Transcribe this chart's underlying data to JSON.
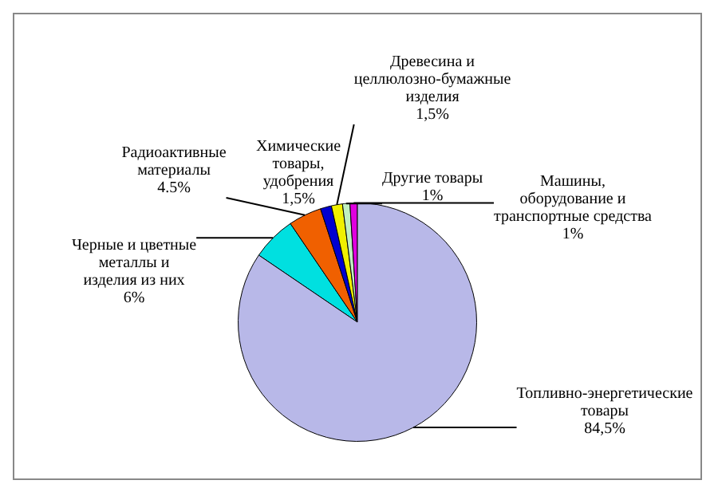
{
  "chart_data": {
    "type": "pie",
    "categories": [
      "Черные и цветные металлы и изделия из них",
      "Радиоактивные материалы",
      "Химические товары, удобрения",
      "Древесина и целлюлозно-бумажные изделия",
      "Другие товары",
      "Машины, оборудование и транспортные средства",
      "Топливно-энергетические товары"
    ],
    "values": [
      6,
      4.5,
      1.5,
      1.5,
      1,
      1,
      84.5
    ],
    "value_labels": [
      "6%",
      "4.5%",
      "1,5%",
      "1,5%",
      "1%",
      "1%",
      "84,5%"
    ],
    "colors": [
      "#00e0e0",
      "#f06000",
      "#0000d0",
      "#f0f000",
      "#c0f0c0",
      "#e000e0",
      "#b8b8e8"
    ],
    "legend": false
  }
}
